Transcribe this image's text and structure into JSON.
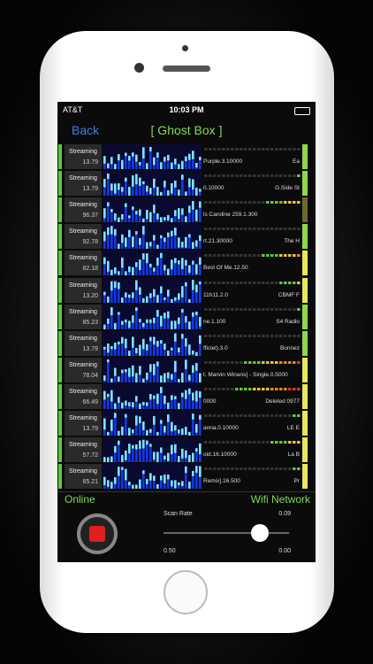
{
  "status_bar": {
    "carrier": "AT&T",
    "time": "10:03 PM"
  },
  "nav": {
    "back": "Back",
    "title": "[ Ghost Box ]"
  },
  "rows": [
    {
      "status": "Streaming",
      "value": "13.79",
      "track": "Purple.3.10000",
      "station": "Ea"
    },
    {
      "status": "Streaming",
      "value": "13.79",
      "track": "0.10000",
      "station": "G.Side St"
    },
    {
      "status": "Streaming",
      "value": "96.37",
      "track": "ls Caroline 259.1.300"
    },
    {
      "status": "Streaming",
      "value": "92.78",
      "track": "rt.21.30000",
      "station": "The H"
    },
    {
      "status": "Streaming",
      "value": "82.18",
      "track": "Best Of Me.12.50"
    },
    {
      "status": "Streaming",
      "value": "13.20",
      "track": "11h11.2.0",
      "station": "CBMF F"
    },
    {
      "status": "Streaming",
      "value": "85.23",
      "track": "ne.1.100",
      "station": "S4 Radio"
    },
    {
      "status": "Streaming",
      "value": "13.79",
      "track": "fficiel).3.0",
      "station": "Bonnez"
    },
    {
      "status": "Streaming",
      "value": "78.04",
      "track": "t. Marvin Winans] - Single.0.5000"
    },
    {
      "status": "Streaming",
      "value": "66.49",
      "track": "0000",
      "station": "Deleted 0977"
    },
    {
      "status": "Streaming",
      "value": "13.79",
      "track": "anna.0.10000",
      "station": "LE E"
    },
    {
      "status": "Streaming",
      "value": "57.72",
      "track": "oid.16.10000",
      "station": "La B"
    },
    {
      "status": "Streaming",
      "value": "65.21",
      "track": "Remix].16.500",
      "station": "Pr"
    }
  ],
  "footer": {
    "connection": "Online",
    "network": "Wifi Network"
  },
  "controls": {
    "scan_rate_label": "Scan Rate",
    "scan_rate_value": "0.09",
    "min_label": "0.50",
    "max_label": "0.00"
  }
}
